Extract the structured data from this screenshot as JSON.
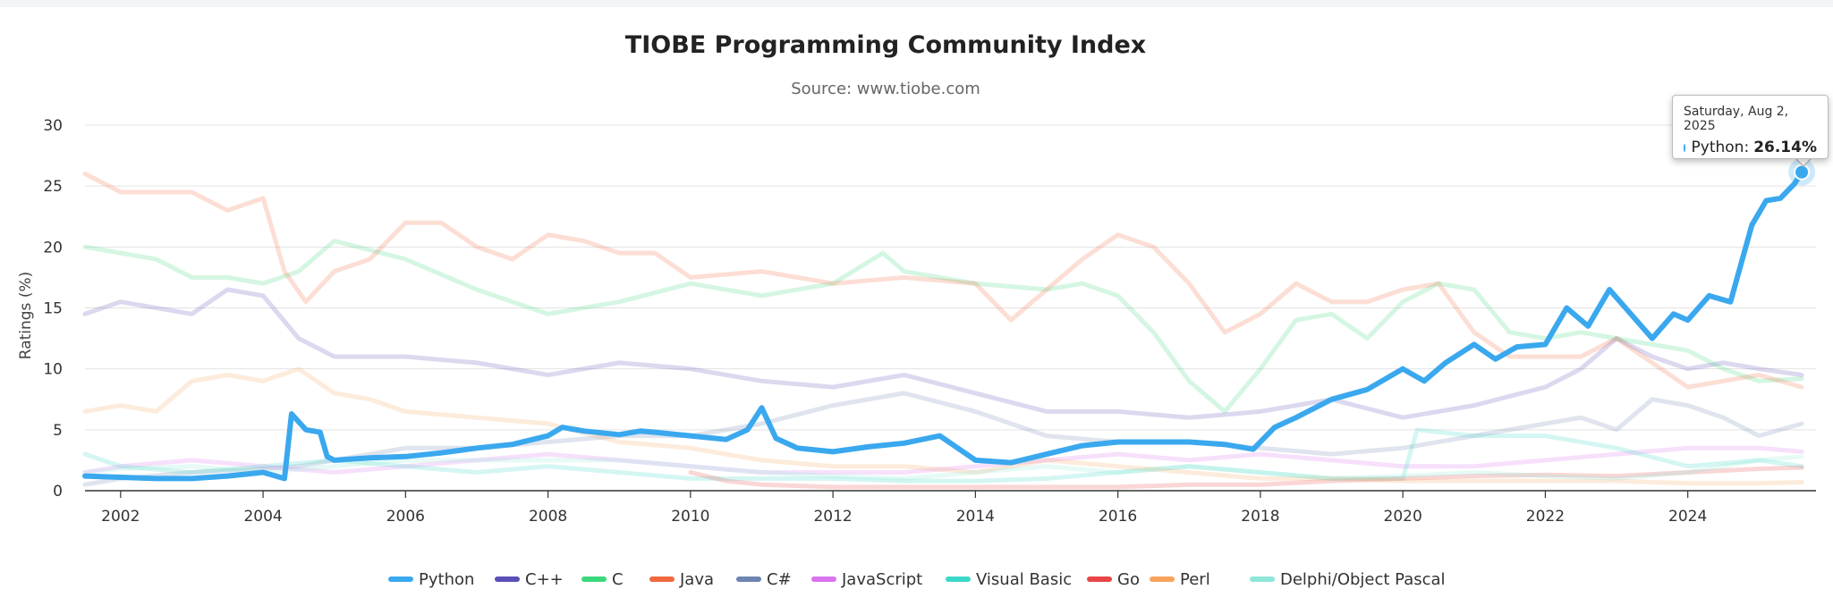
{
  "chart_data": {
    "type": "line",
    "title": "TIOBE Programming Community Index",
    "subtitle": "Source: www.tiobe.com",
    "ylabel": "Ratings (%)",
    "xlabel": "",
    "xlim": [
      2001.5,
      2025.8
    ],
    "ylim": [
      0,
      30
    ],
    "yticks": [
      "0",
      "5",
      "10",
      "15",
      "20",
      "25",
      "30"
    ],
    "xticks": [
      "2002",
      "2004",
      "2006",
      "2008",
      "2010",
      "2012",
      "2014",
      "2016",
      "2018",
      "2020",
      "2022",
      "2024"
    ],
    "grid": true,
    "legend_position": "bottom",
    "highlighted_series": "Python",
    "series": [
      {
        "name": "Python",
        "color": "#3aa8ee",
        "x": [
          2001.5,
          2002.0,
          2002.5,
          2003.0,
          2003.5,
          2004.0,
          2004.3,
          2004.4,
          2004.6,
          2004.8,
          2004.9,
          2005.0,
          2005.5,
          2006.0,
          2006.5,
          2007.0,
          2007.5,
          2008.0,
          2008.2,
          2008.5,
          2009.0,
          2009.3,
          2009.5,
          2010.0,
          2010.5,
          2010.8,
          2011.0,
          2011.2,
          2011.5,
          2012.0,
          2012.5,
          2013.0,
          2013.5,
          2014.0,
          2014.5,
          2015.0,
          2015.5,
          2016.0,
          2016.5,
          2017.0,
          2017.5,
          2017.9,
          2018.2,
          2018.5,
          2019.0,
          2019.5,
          2020.0,
          2020.3,
          2020.6,
          2021.0,
          2021.3,
          2021.6,
          2022.0,
          2022.3,
          2022.6,
          2022.9,
          2023.2,
          2023.5,
          2023.8,
          2024.0,
          2024.3,
          2024.6,
          2024.9,
          2025.1,
          2025.3,
          2025.5,
          2025.6
        ],
        "values": [
          1.2,
          1.1,
          1.0,
          1.0,
          1.2,
          1.5,
          1.0,
          6.3,
          5.0,
          4.8,
          2.8,
          2.5,
          2.7,
          2.8,
          3.1,
          3.5,
          3.8,
          4.5,
          5.2,
          4.9,
          4.6,
          4.9,
          4.8,
          4.5,
          4.2,
          5.0,
          6.8,
          4.3,
          3.5,
          3.2,
          3.6,
          3.9,
          4.5,
          2.5,
          2.3,
          3.0,
          3.7,
          4.0,
          4.0,
          4.0,
          3.8,
          3.4,
          5.2,
          6.0,
          7.5,
          8.3,
          10.0,
          9.0,
          10.5,
          12.0,
          10.8,
          11.8,
          12.0,
          15.0,
          13.5,
          16.5,
          14.5,
          12.5,
          14.5,
          14.0,
          16.0,
          15.5,
          21.8,
          23.8,
          24.0,
          25.2,
          26.14
        ]
      },
      {
        "name": "C++",
        "color": "#5b4fb8",
        "x": [
          2001.5,
          2002.0,
          2002.5,
          2003.0,
          2003.5,
          2004.0,
          2004.5,
          2005.0,
          2006.0,
          2007.0,
          2008.0,
          2009.0,
          2010.0,
          2011.0,
          2012.0,
          2013.0,
          2014.0,
          2015.0,
          2016.0,
          2017.0,
          2018.0,
          2019.0,
          2020.0,
          2021.0,
          2022.0,
          2022.5,
          2023.0,
          2023.5,
          2024.0,
          2024.5,
          2025.0,
          2025.6
        ],
        "values": [
          14.5,
          15.5,
          15.0,
          14.5,
          16.5,
          16.0,
          12.5,
          11.0,
          11.0,
          10.5,
          9.5,
          10.5,
          10.0,
          9.0,
          8.5,
          9.5,
          8.0,
          6.5,
          6.5,
          6.0,
          6.5,
          7.5,
          6.0,
          7.0,
          8.5,
          10.0,
          12.5,
          11.0,
          10.0,
          10.5,
          10.0,
          9.5
        ]
      },
      {
        "name": "C",
        "color": "#3bd87a",
        "x": [
          2001.5,
          2002.0,
          2002.5,
          2003.0,
          2003.5,
          2004.0,
          2004.5,
          2005.0,
          2006.0,
          2007.0,
          2007.5,
          2008.0,
          2009.0,
          2010.0,
          2011.0,
          2012.0,
          2012.7,
          2013.0,
          2014.0,
          2015.0,
          2015.5,
          2016.0,
          2016.5,
          2017.0,
          2017.5,
          2018.0,
          2018.5,
          2019.0,
          2019.5,
          2020.0,
          2020.5,
          2021.0,
          2021.5,
          2022.0,
          2022.5,
          2023.0,
          2023.5,
          2024.0,
          2024.5,
          2025.0,
          2025.6
        ],
        "values": [
          20.0,
          19.5,
          19.0,
          17.5,
          17.5,
          17.0,
          18.0,
          20.5,
          19.0,
          16.5,
          15.5,
          14.5,
          15.5,
          17.0,
          16.0,
          17.0,
          19.5,
          18.0,
          17.0,
          16.5,
          17.0,
          16.0,
          13.0,
          9.0,
          6.5,
          10.0,
          14.0,
          14.5,
          12.5,
          15.5,
          17.0,
          16.5,
          13.0,
          12.5,
          13.0,
          12.5,
          12.0,
          11.5,
          10.0,
          9.0,
          9.2
        ]
      },
      {
        "name": "Java",
        "color": "#f0693f",
        "x": [
          2001.5,
          2002.0,
          2002.5,
          2003.0,
          2003.5,
          2004.0,
          2004.3,
          2004.6,
          2005.0,
          2005.5,
          2006.0,
          2006.5,
          2007.0,
          2007.5,
          2008.0,
          2008.5,
          2009.0,
          2009.5,
          2010.0,
          2011.0,
          2012.0,
          2013.0,
          2014.0,
          2014.5,
          2015.0,
          2015.5,
          2016.0,
          2016.5,
          2017.0,
          2017.5,
          2018.0,
          2018.5,
          2019.0,
          2019.5,
          2020.0,
          2020.5,
          2021.0,
          2021.5,
          2022.0,
          2022.5,
          2023.0,
          2023.5,
          2024.0,
          2024.5,
          2025.0,
          2025.6
        ],
        "values": [
          26.0,
          24.5,
          24.5,
          24.5,
          23.0,
          24.0,
          18.0,
          15.5,
          18.0,
          19.0,
          22.0,
          22.0,
          20.0,
          19.0,
          21.0,
          20.5,
          19.5,
          19.5,
          17.5,
          18.0,
          17.0,
          17.5,
          17.0,
          14.0,
          16.5,
          19.0,
          21.0,
          20.0,
          17.0,
          13.0,
          14.5,
          17.0,
          15.5,
          15.5,
          16.5,
          17.0,
          13.0,
          11.0,
          11.0,
          11.0,
          12.5,
          10.5,
          8.5,
          9.0,
          9.5,
          8.5
        ]
      },
      {
        "name": "C#",
        "color": "#6d85b0",
        "x": [
          2001.5,
          2002.0,
          2003.0,
          2004.0,
          2004.5,
          2005.0,
          2006.0,
          2007.0,
          2008.0,
          2009.0,
          2010.0,
          2011.0,
          2012.0,
          2013.0,
          2014.0,
          2015.0,
          2016.0,
          2017.0,
          2018.0,
          2019.0,
          2020.0,
          2021.0,
          2022.0,
          2022.5,
          2023.0,
          2023.5,
          2024.0,
          2024.5,
          2025.0,
          2025.6
        ],
        "values": [
          0.5,
          1.0,
          1.5,
          1.8,
          2.0,
          2.5,
          3.5,
          3.5,
          4.0,
          4.5,
          4.5,
          5.5,
          7.0,
          8.0,
          6.5,
          4.5,
          4.0,
          4.0,
          3.5,
          3.0,
          3.5,
          4.5,
          5.5,
          6.0,
          5.0,
          7.5,
          7.0,
          6.0,
          4.5,
          5.5
        ]
      },
      {
        "name": "JavaScript",
        "color": "#d973ee",
        "x": [
          2001.5,
          2002.0,
          2003.0,
          2004.0,
          2005.0,
          2006.0,
          2007.0,
          2008.0,
          2009.0,
          2010.0,
          2011.0,
          2012.0,
          2013.0,
          2014.0,
          2015.0,
          2016.0,
          2017.0,
          2018.0,
          2019.0,
          2020.0,
          2021.0,
          2022.0,
          2023.0,
          2024.0,
          2025.0,
          2025.6
        ],
        "values": [
          1.5,
          2.0,
          2.5,
          2.0,
          1.5,
          2.0,
          2.5,
          3.0,
          2.5,
          2.0,
          1.5,
          1.5,
          1.5,
          2.0,
          2.5,
          3.0,
          2.5,
          3.0,
          2.5,
          2.0,
          2.0,
          2.5,
          3.0,
          3.5,
          3.5,
          3.2
        ]
      },
      {
        "name": "Visual Basic",
        "color": "#3bd8c8",
        "x": [
          2001.5,
          2002.0,
          2003.0,
          2004.0,
          2005.0,
          2006.0,
          2007.0,
          2008.0,
          2009.0,
          2010.0,
          2011.0,
          2012.0,
          2013.0,
          2014.0,
          2015.0,
          2016.0,
          2017.0,
          2018.0,
          2019.0,
          2020.0,
          2020.2,
          2021.0,
          2022.0,
          2023.0,
          2024.0,
          2025.0,
          2025.6
        ],
        "values": [
          3.0,
          2.0,
          1.5,
          2.0,
          2.5,
          2.0,
          1.5,
          2.0,
          1.5,
          1.0,
          1.0,
          1.0,
          0.8,
          0.8,
          1.0,
          1.5,
          2.0,
          1.5,
          1.0,
          1.0,
          5.0,
          4.5,
          4.5,
          3.5,
          2.0,
          2.5,
          2.0
        ]
      },
      {
        "name": "Go",
        "color": "#e84646",
        "x": [
          2010.0,
          2010.5,
          2011.0,
          2012.0,
          2013.0,
          2014.0,
          2015.0,
          2016.0,
          2017.0,
          2018.0,
          2019.0,
          2020.0,
          2021.0,
          2022.0,
          2023.0,
          2024.0,
          2025.0,
          2025.6
        ],
        "values": [
          1.5,
          0.8,
          0.5,
          0.3,
          0.3,
          0.3,
          0.3,
          0.3,
          0.5,
          0.5,
          0.8,
          1.0,
          1.2,
          1.3,
          1.2,
          1.5,
          1.8,
          1.9
        ]
      },
      {
        "name": "Perl",
        "color": "#f7a45a",
        "x": [
          2001.5,
          2002.0,
          2002.5,
          2003.0,
          2003.5,
          2004.0,
          2004.5,
          2005.0,
          2005.5,
          2006.0,
          2007.0,
          2008.0,
          2009.0,
          2010.0,
          2011.0,
          2012.0,
          2013.0,
          2014.0,
          2015.0,
          2016.0,
          2017.0,
          2018.0,
          2019.0,
          2020.0,
          2021.0,
          2022.0,
          2023.0,
          2024.0,
          2025.0,
          2025.6
        ],
        "values": [
          6.5,
          7.0,
          6.5,
          9.0,
          9.5,
          9.0,
          10.0,
          8.0,
          7.5,
          6.5,
          6.0,
          5.5,
          4.0,
          3.5,
          2.5,
          2.0,
          2.0,
          1.5,
          2.5,
          2.0,
          1.5,
          1.0,
          1.0,
          0.8,
          0.8,
          0.8,
          0.8,
          0.6,
          0.6,
          0.7
        ]
      },
      {
        "name": "Delphi/Object Pascal",
        "color": "#8ee6d8",
        "x": [
          2001.5,
          2002.0,
          2003.0,
          2004.0,
          2005.0,
          2006.0,
          2007.0,
          2008.0,
          2009.0,
          2010.0,
          2011.0,
          2012.0,
          2013.0,
          2014.0,
          2015.0,
          2016.0,
          2017.0,
          2018.0,
          2019.0,
          2020.0,
          2021.0,
          2022.0,
          2023.0,
          2024.0,
          2025.0,
          2025.6
        ],
        "values": [
          1.5,
          1.8,
          2.0,
          1.5,
          2.0,
          2.5,
          2.5,
          2.5,
          2.5,
          2.0,
          1.5,
          1.2,
          1.0,
          1.5,
          2.0,
          1.5,
          2.0,
          1.5,
          1.0,
          1.2,
          1.5,
          1.2,
          1.0,
          1.5,
          2.5,
          2.8
        ]
      }
    ]
  },
  "tooltip": {
    "date": "Saturday, Aug 2, 2025",
    "series": "Python",
    "separator": ":",
    "value": "26.14%"
  }
}
